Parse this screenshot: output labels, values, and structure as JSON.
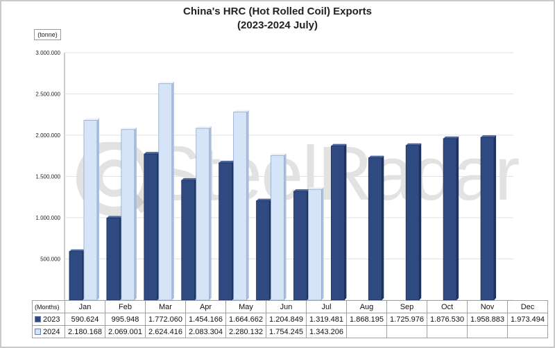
{
  "chart_data": {
    "type": "bar",
    "title": "China's HRC (Hot Rolled Coil) Exports",
    "subtitle": "(2023-2024 July)",
    "unit": "(tonne)",
    "xlabel": "(Months)",
    "categories": [
      "Jan",
      "Feb",
      "Mar",
      "Apr",
      "May",
      "Jun",
      "Jul",
      "Aug",
      "Sep",
      "Oct",
      "Nov",
      "Dec"
    ],
    "series": [
      {
        "name": "2023",
        "color": "#2e4a80",
        "values": [
          590624,
          995948,
          1772060,
          1454166,
          1664662,
          1204849,
          1319481,
          1868195,
          1725976,
          1876530,
          1958883,
          1973494
        ],
        "labels": [
          "590.624",
          "995.948",
          "1.772.060",
          "1.454.166",
          "1.664.662",
          "1.204.849",
          "1.319.481",
          "1.868.195",
          "1.725.976",
          "1.876.530",
          "1.958.883",
          "1.973.494"
        ]
      },
      {
        "name": "2024",
        "color": "#d6e4f7",
        "values": [
          2180168,
          2069001,
          2624416,
          2083304,
          2280132,
          1754245,
          1343206,
          null,
          null,
          null,
          null,
          null
        ],
        "labels": [
          "2.180.168",
          "2.069.001",
          "2.624.416",
          "2.083.304",
          "2.280.132",
          "1.754.245",
          "1.343.206",
          "",
          "",
          "",
          "",
          ""
        ]
      }
    ],
    "yticks": [
      "-",
      "500.000",
      "1.000.000",
      "1.500.000",
      "2.000.000",
      "2.500.000",
      "3.000.000"
    ],
    "ylim": [
      0,
      3000000
    ],
    "grid": true,
    "legend": "data table"
  },
  "watermark": "SteelRadar"
}
